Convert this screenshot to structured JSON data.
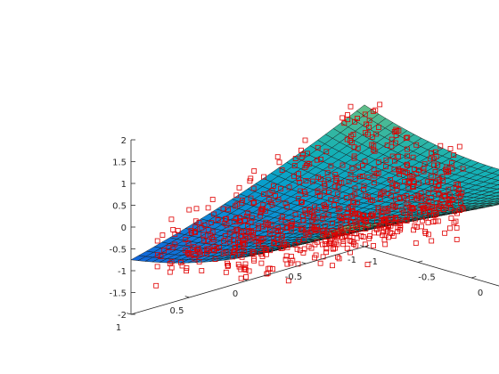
{
  "chart_data": {
    "type": "surface",
    "title": "",
    "xlabel": "",
    "ylabel": "",
    "zlabel": "",
    "x_ticks": [
      "-1",
      "-0.5",
      "0",
      "0.5",
      "1"
    ],
    "y_ticks": [
      "-1",
      "-0.5",
      "0",
      "0.5",
      "1"
    ],
    "z_ticks": [
      "-2",
      "-1.5",
      "-1",
      "-0.5",
      "0",
      "0.5",
      "1",
      "1.5",
      "2"
    ],
    "xlim": [
      -1,
      1
    ],
    "ylim": [
      -1,
      1
    ],
    "zlim": [
      -2,
      2
    ],
    "surface": {
      "colormap": "parula",
      "grid_resolution": 30,
      "z_range": [
        -1.4,
        2.0
      ],
      "description_model": "z ≈ 0.2 + 0.45*x - 0.35*y + 0.65*x*y + 0.35*x^2 + 0.15*y^2"
    },
    "scatter": {
      "marker": "square",
      "color": "#e00000",
      "approx_count": 900
    },
    "grid": false,
    "legend": "none"
  }
}
